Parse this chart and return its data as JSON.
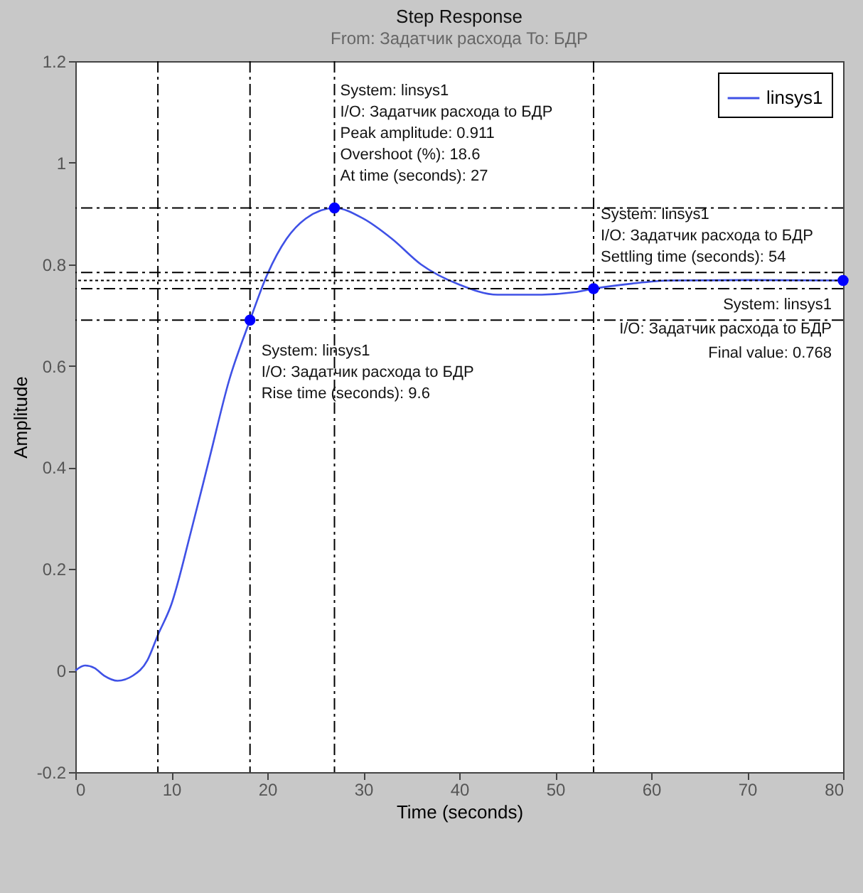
{
  "chart_data": {
    "type": "line",
    "title": "Step Response",
    "subtitle": "From: Задатчик расхода  To: БДР",
    "xlabel": "Time (seconds)",
    "ylabel": "Amplitude",
    "series": [
      {
        "name": "linsys1",
        "color": "#3f51e6",
        "x": [
          0,
          1,
          2,
          3,
          4.4,
          6,
          7.5,
          8.6,
          10,
          12,
          14,
          16,
          18.2,
          20,
          22,
          24,
          27,
          30,
          33,
          36,
          40,
          44,
          48,
          52,
          54,
          58,
          62,
          70,
          80
        ],
        "values": [
          0,
          0.01,
          0.005,
          -0.01,
          -0.02,
          -0.01,
          0.02,
          0.07,
          0.13,
          0.27,
          0.42,
          0.57,
          0.69,
          0.78,
          0.85,
          0.89,
          0.911,
          0.89,
          0.85,
          0.8,
          0.76,
          0.74,
          0.74,
          0.745,
          0.752,
          0.762,
          0.768,
          0.769,
          0.768
        ]
      },
      {
        "type": "scatter",
        "color": "#0000ff",
        "marker": "circle",
        "x": [
          18.2,
          27,
          54,
          80
        ],
        "values": [
          0.69,
          0.911,
          0.752,
          0.768
        ]
      }
    ],
    "xlim": [
      0,
      80
    ],
    "xticks": [
      0,
      10,
      20,
      30,
      40,
      50,
      60,
      70,
      80
    ],
    "ylim": [
      -0.2,
      1.2
    ],
    "yticks": [
      -0.2,
      0,
      0.2,
      0.4,
      0.6,
      0.8,
      1,
      1.2
    ],
    "grid": false,
    "legend": "top right",
    "ref_lines": [
      {
        "axis": "x",
        "value": 8.6,
        "line_style": "dashed"
      },
      {
        "axis": "x",
        "value": 18.2,
        "line_style": "dashed"
      },
      {
        "axis": "x",
        "value": 27,
        "line_style": "dashed"
      },
      {
        "axis": "x",
        "value": 54,
        "line_style": "dashed"
      },
      {
        "axis": "y",
        "value": 0.911,
        "line_style": "dashed"
      },
      {
        "axis": "y",
        "value": 0.69,
        "line_style": "dashed"
      },
      {
        "axis": "y",
        "value": 0.784,
        "line_style": "dashed"
      },
      {
        "axis": "y",
        "value": 0.752,
        "line_style": "dashed"
      },
      {
        "axis": "y",
        "value": 0.768,
        "line_style": "dotted"
      }
    ],
    "annotations": [
      {
        "text": "System: linsys1\nI/O: Задатчик расхода to БДР\nPeak amplitude: 0.911\nOvershoot (%): 18.6\nAt time (seconds): 27",
        "x": 27,
        "y": 0.911
      },
      {
        "text": "System: linsys1\nI/O: Задатчик расхода to БДР\nRise time (seconds): 9.6",
        "x": 18.2,
        "y": 0.69
      },
      {
        "text": "System: linsys1\nI/O: Задатчик расхода to БДР\nSettling time (seconds): 54",
        "x": 54,
        "y": 0.752
      },
      {
        "text": "System: linsys1\nI/O: Задатчик расхода to БДР\nFinal value: 0.768",
        "x": 80,
        "y": 0.768
      }
    ]
  }
}
